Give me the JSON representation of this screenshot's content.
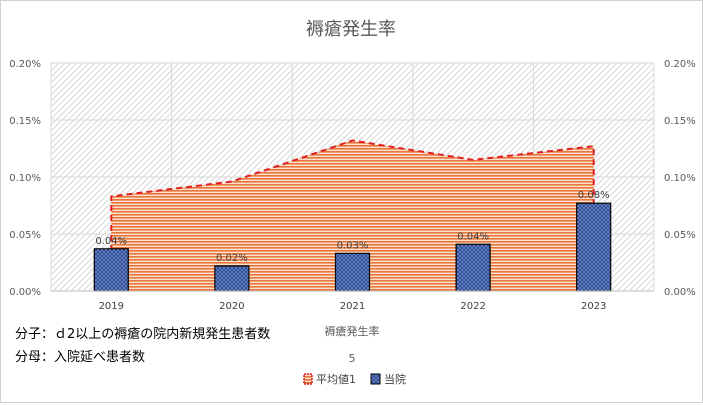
{
  "chart_data": {
    "type": "bar",
    "title": "褥瘡発生率",
    "categories": [
      "2019",
      "2020",
      "2021",
      "2022",
      "2023"
    ],
    "series": [
      {
        "name": "平均値1",
        "kind": "area",
        "values": [
          0.083,
          0.096,
          0.132,
          0.115,
          0.127
        ],
        "color": "#e8763a",
        "line_color": "#e02020"
      },
      {
        "name": "当院",
        "kind": "bar",
        "values": [
          0.037,
          0.022,
          0.033,
          0.041,
          0.077
        ],
        "data_labels": [
          "0.04%",
          "0.02%",
          "0.03%",
          "0.04%",
          "0.08%"
        ],
        "color": "#2f4f9a"
      }
    ],
    "ylim": [
      0,
      0.2
    ],
    "y_ticks": [
      "0.00%",
      "0.05%",
      "0.10%",
      "0.15%",
      "0.20%"
    ],
    "x_axis_title": "褥瘡発生率",
    "x_axis_subtitle": "5",
    "grid": true,
    "legend_position": "bottom"
  },
  "notes": {
    "numerator": "分子：ｄ2以上の褥瘡の院内新規発生患者数",
    "denominator": "分母：入院延べ患者数"
  }
}
